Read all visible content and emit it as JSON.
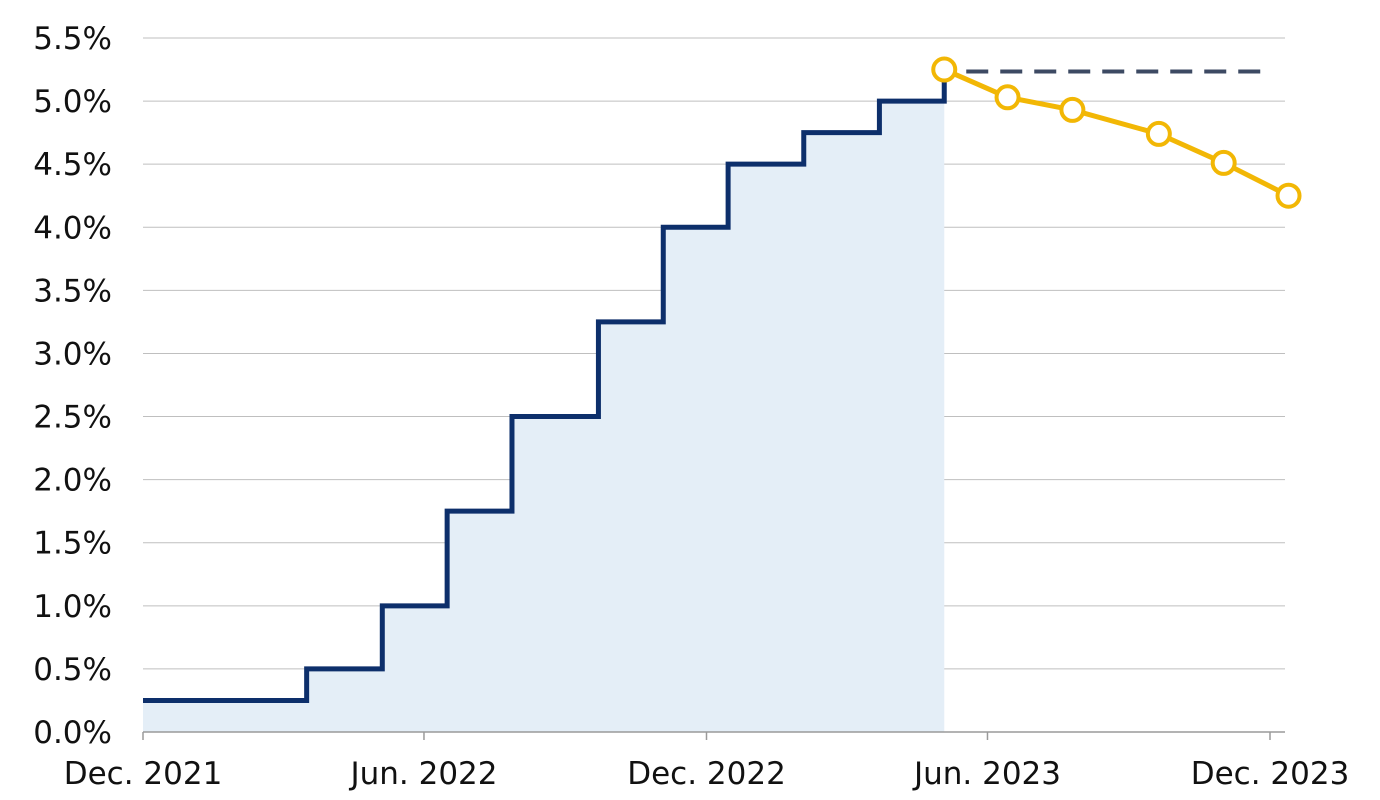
{
  "chart_data": {
    "type": "line",
    "title": "",
    "xlabel": "",
    "ylabel": "",
    "ylim": [
      0,
      5.5
    ],
    "xlim": [
      "2021-12-01",
      "2023-12-01"
    ],
    "grid": true,
    "y_ticks": [
      0,
      0.5,
      1,
      1.5,
      2,
      2.5,
      3,
      3.5,
      4,
      4.5,
      5,
      5.5
    ],
    "y_tick_labels": [
      "0.0%",
      "0.5%",
      "1.0%",
      "1.5%",
      "2.0%",
      "2.5%",
      "3.0%",
      "3.5%",
      "4.0%",
      "4.5%",
      "5.0%",
      "5.5%"
    ],
    "x_ticks": [
      "2021-12-01",
      "2022-06-01",
      "2022-12-01",
      "2023-06-01",
      "2023-12-01"
    ],
    "x_tick_labels": [
      "Dec. 2021",
      "Jun. 2022",
      "Dec. 2022",
      "Jun. 2023",
      "Dec. 2023"
    ],
    "series": [
      {
        "style": "step-area",
        "color": "#0d2f6b",
        "fill": "#e4eef7",
        "points": [
          {
            "x": "2021-12-01",
            "y": 0.25
          },
          {
            "x": "2022-03-17",
            "y": 0.5
          },
          {
            "x": "2022-05-05",
            "y": 1.0
          },
          {
            "x": "2022-06-16",
            "y": 1.75
          },
          {
            "x": "2022-07-28",
            "y": 2.5
          },
          {
            "x": "2022-09-22",
            "y": 3.25
          },
          {
            "x": "2022-11-03",
            "y": 4.0
          },
          {
            "x": "2022-12-15",
            "y": 4.5
          },
          {
            "x": "2023-02-02",
            "y": 4.75
          },
          {
            "x": "2023-03-23",
            "y": 5.0
          },
          {
            "x": "2023-05-04",
            "y": 5.25
          }
        ]
      },
      {
        "style": "dashed",
        "color": "#3d4a63",
        "points": [
          {
            "x": "2023-05-04",
            "y": 5.25
          },
          {
            "x": "2023-11-26",
            "y": 5.25
          }
        ]
      },
      {
        "style": "line-markers",
        "color": "#f2b705",
        "points": [
          {
            "x": "2023-05-04",
            "y": 5.25
          },
          {
            "x": "2023-06-14",
            "y": 5.03
          },
          {
            "x": "2023-07-26",
            "y": 4.93
          },
          {
            "x": "2023-09-20",
            "y": 4.74
          },
          {
            "x": "2023-11-01",
            "y": 4.51
          },
          {
            "x": "2023-12-13",
            "y": 4.25
          }
        ]
      }
    ]
  }
}
